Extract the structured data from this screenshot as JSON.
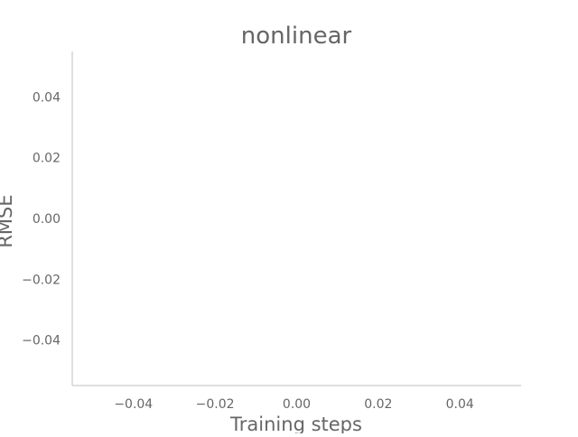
{
  "chart_data": {
    "type": "line",
    "title": "nonlinear",
    "xlabel": "Training steps",
    "ylabel": "RMSE",
    "xlim": [
      -0.055,
      0.055
    ],
    "ylim": [
      -0.055,
      0.055
    ],
    "x_ticks": [
      -0.04,
      -0.02,
      0.0,
      0.02,
      0.04
    ],
    "x_tick_labels": [
      "−0.04",
      "−0.02",
      "0.00",
      "0.02",
      "0.04"
    ],
    "y_ticks": [
      -0.04,
      -0.02,
      0.0,
      0.02,
      0.04
    ],
    "y_tick_labels": [
      "−0.04",
      "−0.02",
      "0.00",
      "0.02",
      "0.04"
    ],
    "grid": false,
    "legend": "none",
    "series": [],
    "colors": {
      "text": "#666666",
      "spine": "#cccccc",
      "background": "#ffffff"
    }
  }
}
